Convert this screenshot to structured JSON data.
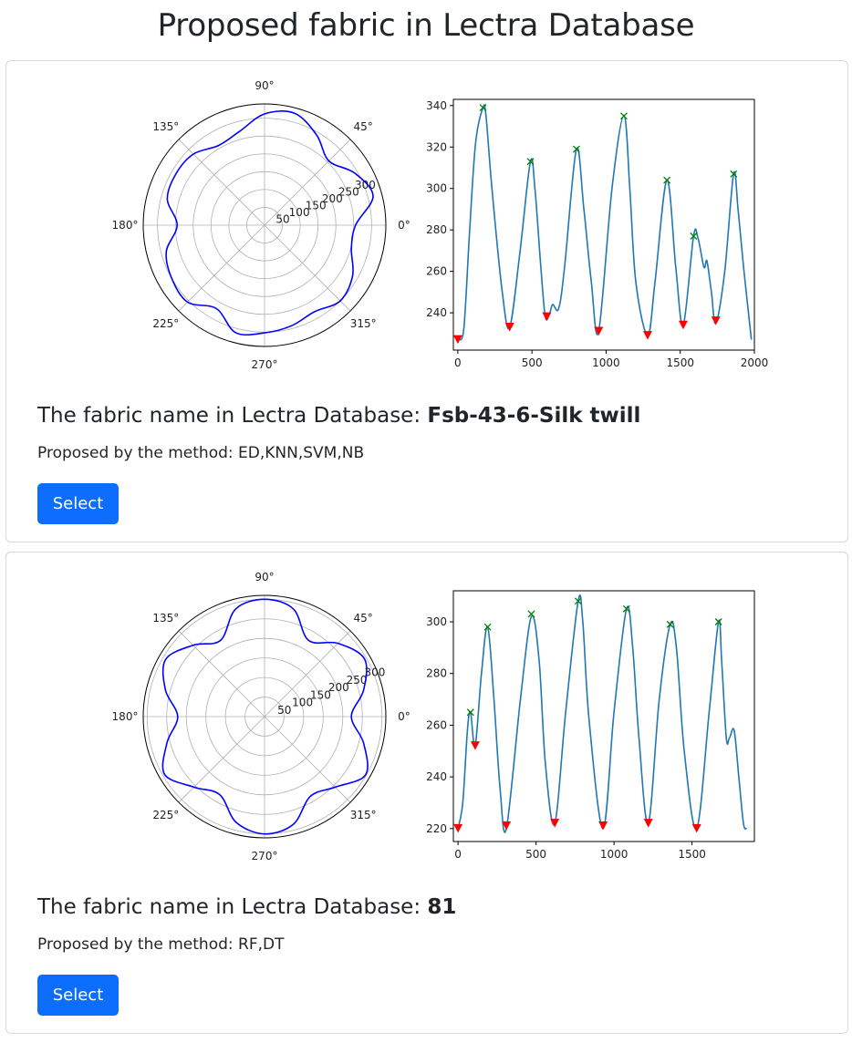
{
  "page": {
    "title": "Proposed fabric in Lectra Database"
  },
  "cards": [
    {
      "fabric_prefix": "The fabric name in Lectra Database: ",
      "fabric_name": "Fsb-43-6-Silk twill",
      "method_prefix": "Proposed by the method: ",
      "methods": "ED,KNN,SVM,NB",
      "select_label": "Select"
    },
    {
      "fabric_prefix": "The fabric name in Lectra Database: ",
      "fabric_name": "81",
      "method_prefix": "Proposed by the method: ",
      "methods": "RF,DT",
      "select_label": "Select"
    }
  ],
  "chart_data": [
    {
      "type": "polar",
      "rmax": 340,
      "radial_ticks": [
        "50",
        "100",
        "150",
        "200",
        "250",
        "300"
      ],
      "angle_ticks": [
        "0°",
        "45°",
        "90°",
        "135°",
        "180°",
        "225°",
        "270°",
        "315°"
      ],
      "line_color": "#0000ff",
      "angles": [
        0,
        15,
        30,
        45,
        60,
        75,
        90,
        105,
        120,
        135,
        150,
        165,
        180,
        195,
        210,
        225,
        240,
        255,
        270,
        285,
        300,
        315,
        330,
        345
      ],
      "values": [
        255,
        315,
        292,
        255,
        292,
        325,
        312,
        272,
        258,
        282,
        287,
        282,
        245,
        285,
        300,
        305,
        270,
        312,
        302,
        292,
        280,
        300,
        285,
        252
      ]
    },
    {
      "type": "line",
      "line_color": "#1f77b4",
      "xlim": [
        -30,
        2000
      ],
      "ylim": [
        222,
        343
      ],
      "xticks": [
        0,
        500,
        1000,
        1500,
        2000
      ],
      "yticks": [
        240,
        260,
        280,
        300,
        320,
        340
      ],
      "x": [
        0,
        40,
        80,
        120,
        170,
        190,
        230,
        300,
        350,
        420,
        490,
        520,
        560,
        590,
        620,
        640,
        680,
        720,
        800,
        850,
        900,
        950,
        1040,
        1120,
        1160,
        1200,
        1280,
        1330,
        1410,
        1470,
        1520,
        1590,
        1620,
        1660,
        1680,
        1710,
        1740,
        1800,
        1860,
        1890,
        1930,
        1980
      ],
      "y": [
        228,
        232,
        280,
        322,
        339,
        335,
        300,
        250,
        233,
        270,
        313,
        300,
        262,
        238,
        240,
        244,
        242,
        262,
        319,
        290,
        255,
        231,
        300,
        335,
        300,
        255,
        229,
        255,
        304,
        262,
        234,
        277,
        276,
        262,
        265,
        250,
        235,
        260,
        307,
        290,
        260,
        227
      ],
      "peak_markers": {
        "color": "#008000",
        "x": [
          170,
          490,
          800,
          1120,
          1410,
          1590,
          1860
        ],
        "y": [
          339,
          313,
          319,
          335,
          304,
          277,
          307
        ]
      },
      "valley_markers": {
        "color": "#ff0000",
        "x": [
          0,
          350,
          600,
          950,
          1280,
          1520,
          1740
        ],
        "y": [
          227,
          233,
          238,
          231,
          229,
          234,
          236
        ]
      }
    },
    {
      "type": "polar",
      "rmax": 310,
      "radial_ticks": [
        "50",
        "100",
        "150",
        "200",
        "250",
        "300"
      ],
      "angle_ticks": [
        "0°",
        "45°",
        "90°",
        "135°",
        "180°",
        "225°",
        "270°",
        "315°"
      ],
      "line_color": "#0000ff",
      "angles": [
        0,
        15,
        30,
        45,
        60,
        75,
        90,
        105,
        120,
        135,
        150,
        165,
        180,
        195,
        210,
        225,
        240,
        255,
        270,
        285,
        300,
        315,
        330,
        345
      ],
      "values": [
        222,
        262,
        295,
        265,
        225,
        285,
        300,
        285,
        225,
        258,
        292,
        262,
        222,
        258,
        295,
        255,
        230,
        280,
        300,
        285,
        235,
        255,
        298,
        262
      ]
    },
    {
      "type": "line",
      "line_color": "#1f77b4",
      "xlim": [
        -30,
        1900
      ],
      "ylim": [
        215,
        312
      ],
      "xticks": [
        0,
        500,
        1000,
        1500
      ],
      "yticks": [
        220,
        240,
        260,
        280,
        300
      ],
      "x": [
        0,
        30,
        60,
        80,
        110,
        150,
        190,
        230,
        270,
        310,
        400,
        470,
        520,
        560,
        620,
        690,
        770,
        800,
        840,
        930,
        1000,
        1080,
        1120,
        1160,
        1220,
        1290,
        1360,
        1400,
        1450,
        1530,
        1610,
        1670,
        1690,
        1720,
        1740,
        1770,
        1800,
        1830,
        1850
      ],
      "y": [
        220,
        230,
        258,
        265,
        252,
        280,
        298,
        270,
        235,
        220,
        270,
        302,
        285,
        245,
        222,
        265,
        308,
        300,
        262,
        220,
        265,
        305,
        290,
        255,
        222,
        270,
        299,
        290,
        250,
        220,
        265,
        300,
        285,
        255,
        255,
        258,
        240,
        222,
        220
      ],
      "peak_markers": {
        "color": "#008000",
        "x": [
          80,
          190,
          470,
          770,
          1080,
          1360,
          1670
        ],
        "y": [
          265,
          298,
          303,
          308,
          305,
          299,
          300
        ]
      },
      "valley_markers": {
        "color": "#ff0000",
        "x": [
          0,
          110,
          310,
          620,
          930,
          1220,
          1530
        ],
        "y": [
          220,
          252,
          221,
          222,
          221,
          222,
          220
        ]
      }
    }
  ]
}
